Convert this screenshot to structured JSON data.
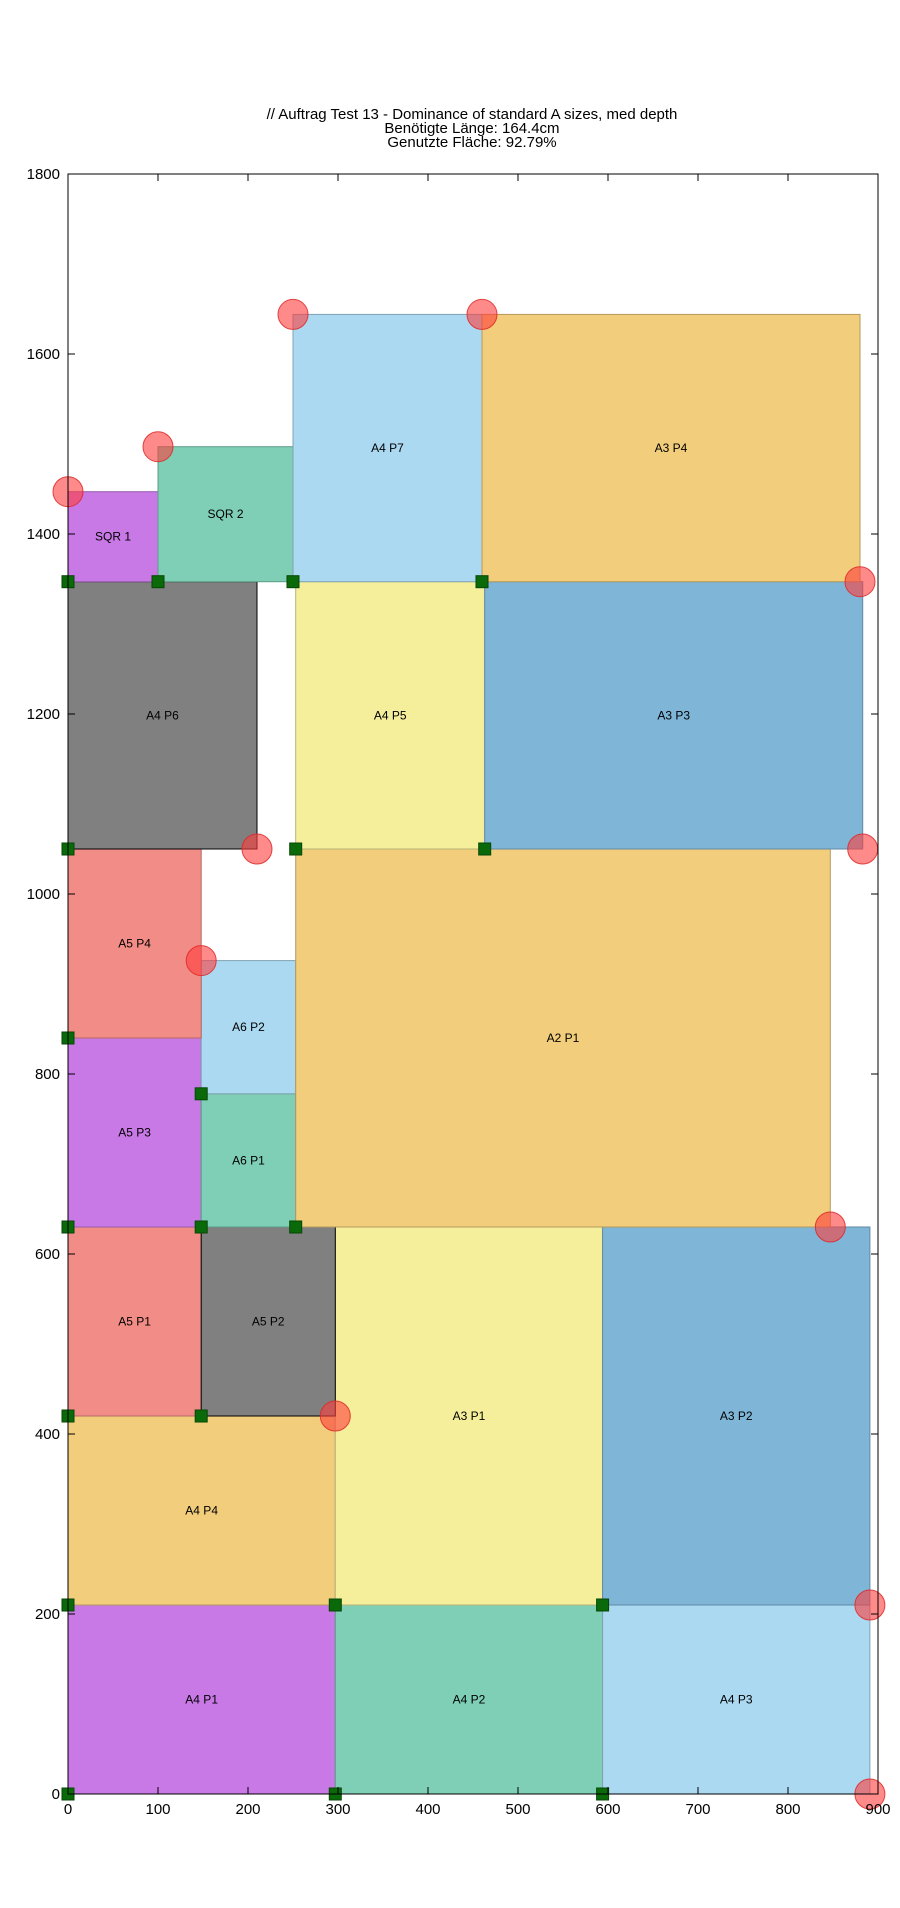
{
  "chart_data": {
    "type": "packing",
    "title_lines": [
      "// Auftrag Test 13 - Dominance of standard A sizes, med depth",
      "Benötigte Länge: 164.4cm",
      "Genutzte Fläche: 92.79%"
    ],
    "xlim": [
      0,
      900
    ],
    "ylim": [
      0,
      1800
    ],
    "xticks": [
      0,
      100,
      200,
      300,
      400,
      500,
      600,
      700,
      800,
      900
    ],
    "yticks": [
      0,
      200,
      400,
      600,
      800,
      1000,
      1200,
      1400,
      1600,
      1800
    ],
    "grid": false,
    "legend": "none",
    "rects": [
      {
        "label": "A4 P1",
        "x0": 0,
        "y0": 0,
        "x1": 297,
        "y1": 210,
        "color": "#c879e6"
      },
      {
        "label": "A4 P2",
        "x0": 297,
        "y0": 0,
        "x1": 594,
        "y1": 210,
        "color": "#7ecfb5"
      },
      {
        "label": "A4 P3",
        "x0": 594,
        "y0": 0,
        "x1": 891,
        "y1": 210,
        "color": "#abd9f1"
      },
      {
        "label": "A4 P4",
        "x0": 0,
        "y0": 210,
        "x1": 297,
        "y1": 420,
        "color": "#f1cd7c"
      },
      {
        "label": "A3 P1",
        "x0": 297,
        "y0": 210,
        "x1": 594,
        "y1": 630,
        "color": "#f5ef9c"
      },
      {
        "label": "A3 P2",
        "x0": 594,
        "y0": 210,
        "x1": 891,
        "y1": 630,
        "color": "#7fb6d8"
      },
      {
        "label": "A5 P1",
        "x0": 0,
        "y0": 420,
        "x1": 148,
        "y1": 630,
        "color": "#f28c86"
      },
      {
        "label": "A5 P2",
        "x0": 148,
        "y0": 420,
        "x1": 297,
        "y1": 630,
        "color": "#808080",
        "edge": "#000000"
      },
      {
        "label": "A5 P3",
        "x0": 0,
        "y0": 630,
        "x1": 148,
        "y1": 840,
        "color": "#c879e6"
      },
      {
        "label": "A6 P1",
        "x0": 148,
        "y0": 630,
        "x1": 253,
        "y1": 778,
        "color": "#7ecfb5"
      },
      {
        "label": "A6 P2",
        "x0": 148,
        "y0": 778,
        "x1": 253,
        "y1": 926,
        "color": "#abd9f1"
      },
      {
        "label": "A2 P1",
        "x0": 253,
        "y0": 630,
        "x1": 847,
        "y1": 1050,
        "color": "#f1cd7c"
      },
      {
        "label": "A5 P4",
        "x0": 0,
        "y0": 840,
        "x1": 148,
        "y1": 1050,
        "color": "#f28c86"
      },
      {
        "label": "A4 P6",
        "x0": 0,
        "y0": 1050,
        "x1": 210,
        "y1": 1347,
        "color": "#808080",
        "edge": "#000000"
      },
      {
        "label": "A4 P5",
        "x0": 253,
        "y0": 1050,
        "x1": 463,
        "y1": 1347,
        "color": "#f5ef9c"
      },
      {
        "label": "A3 P3",
        "x0": 463,
        "y0": 1050,
        "x1": 883,
        "y1": 1347,
        "color": "#7fb6d8"
      },
      {
        "label": "SQR 1",
        "x0": 0,
        "y0": 1347,
        "x1": 100,
        "y1": 1447,
        "color": "#c879e6"
      },
      {
        "label": "SQR 2",
        "x0": 100,
        "y0": 1347,
        "x1": 250,
        "y1": 1497,
        "color": "#7ecfb5"
      },
      {
        "label": "A4 P7",
        "x0": 250,
        "y0": 1347,
        "x1": 460,
        "y1": 1644,
        "color": "#abd9f1"
      },
      {
        "label": "A3 P4",
        "x0": 460,
        "y0": 1347,
        "x1": 880,
        "y1": 1644,
        "color": "#f1cd7c"
      }
    ],
    "corner_points": [
      [
        0,
        0
      ],
      [
        297,
        0
      ],
      [
        594,
        0
      ],
      [
        0,
        210
      ],
      [
        297,
        210
      ],
      [
        594,
        210
      ],
      [
        0,
        420
      ],
      [
        148,
        420
      ],
      [
        0,
        630
      ],
      [
        148,
        630
      ],
      [
        253,
        630
      ],
      [
        148,
        778
      ],
      [
        0,
        840
      ],
      [
        0,
        1050
      ],
      [
        253,
        1050
      ],
      [
        463,
        1050
      ],
      [
        0,
        1347
      ],
      [
        100,
        1347
      ],
      [
        250,
        1347
      ],
      [
        460,
        1347
      ]
    ],
    "marker_points": [
      [
        891,
        0
      ],
      [
        891,
        210
      ],
      [
        297,
        420
      ],
      [
        847,
        630
      ],
      [
        148,
        926
      ],
      [
        210,
        1050
      ],
      [
        883,
        1050
      ],
      [
        880,
        1347
      ],
      [
        0,
        1447
      ],
      [
        100,
        1497
      ],
      [
        250,
        1644
      ],
      [
        460,
        1644
      ]
    ]
  }
}
